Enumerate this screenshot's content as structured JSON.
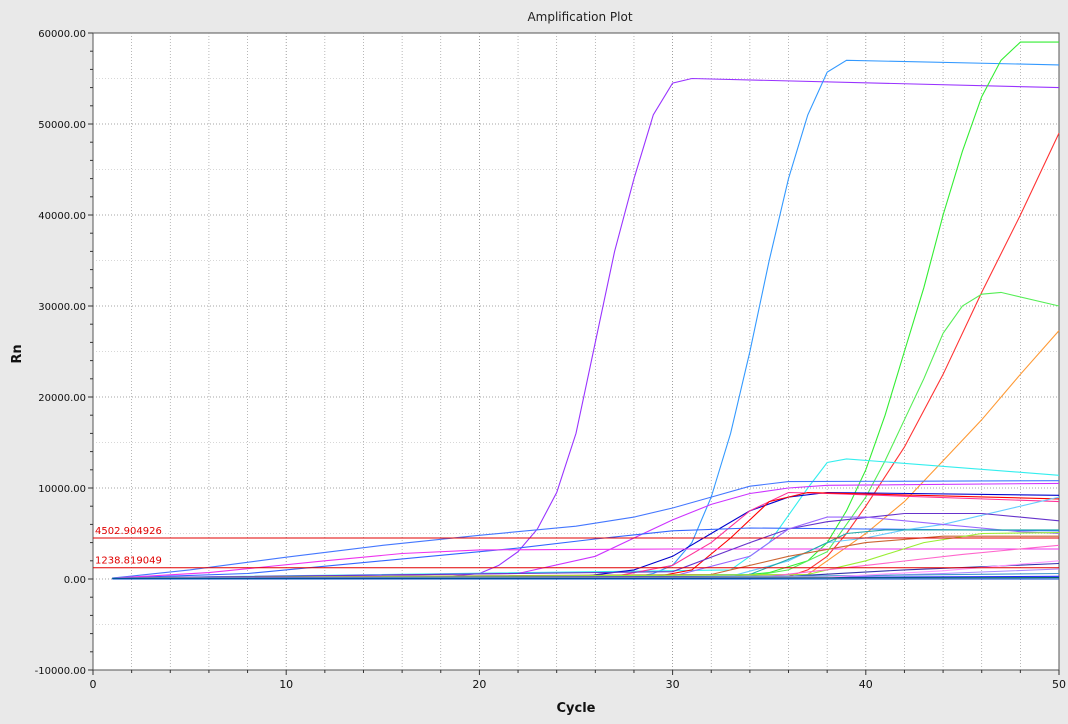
{
  "chart_data": {
    "type": "line",
    "title": "Amplification Plot",
    "xlabel": "Cycle",
    "ylabel": "Rn",
    "xlim": [
      0,
      50
    ],
    "ylim": [
      -10000,
      60000
    ],
    "x_ticks": [
      0,
      10,
      20,
      30,
      40,
      50
    ],
    "x_tick_labels": [
      "0",
      "10",
      "20",
      "30",
      "40",
      "50"
    ],
    "y_ticks": [
      -10000,
      0,
      10000,
      20000,
      30000,
      40000,
      50000,
      60000
    ],
    "y_tick_labels": [
      "-10000.00",
      "0.00",
      "10000.00",
      "20000.00",
      "30000.00",
      "40000.00",
      "50000.00",
      "60000.00"
    ],
    "grid": true,
    "background": "#ffffff",
    "thresholds": [
      {
        "label": "4502.904926",
        "value": 4502.904926,
        "color": "#e00000"
      },
      {
        "label": "1238.819049",
        "value": 1238.819049,
        "color": "#e00000"
      }
    ],
    "series": [
      {
        "color": "#9933ff",
        "points": [
          [
            1,
            100
          ],
          [
            18,
            200
          ],
          [
            20,
            600
          ],
          [
            21,
            1500
          ],
          [
            22,
            3000
          ],
          [
            23,
            5500
          ],
          [
            24,
            9500
          ],
          [
            25,
            16000
          ],
          [
            26,
            26000
          ],
          [
            27,
            36000
          ],
          [
            28,
            44000
          ],
          [
            29,
            51000
          ],
          [
            30,
            54500
          ],
          [
            31,
            55000
          ],
          [
            50,
            54000
          ]
        ]
      },
      {
        "color": "#3399ff",
        "points": [
          [
            1,
            100
          ],
          [
            28,
            200
          ],
          [
            29,
            600
          ],
          [
            30,
            1500
          ],
          [
            31,
            4000
          ],
          [
            32,
            9000
          ],
          [
            33,
            16000
          ],
          [
            34,
            25000
          ],
          [
            35,
            35000
          ],
          [
            36,
            44000
          ],
          [
            37,
            51000
          ],
          [
            38,
            55700
          ],
          [
            39,
            57000
          ],
          [
            50,
            56500
          ]
        ]
      },
      {
        "color": "#33ee33",
        "points": [
          [
            1,
            100
          ],
          [
            33,
            300
          ],
          [
            35,
            700
          ],
          [
            37,
            2000
          ],
          [
            38,
            4000
          ],
          [
            39,
            7500
          ],
          [
            40,
            12000
          ],
          [
            41,
            18000
          ],
          [
            42,
            25000
          ],
          [
            43,
            32000
          ],
          [
            44,
            40000
          ],
          [
            45,
            47000
          ],
          [
            46,
            53000
          ],
          [
            47,
            57000
          ],
          [
            48,
            59000
          ],
          [
            50,
            59000
          ]
        ]
      },
      {
        "color": "#ff3333",
        "points": [
          [
            1,
            100
          ],
          [
            36,
            300
          ],
          [
            37,
            1000
          ],
          [
            38,
            2500
          ],
          [
            39,
            5000
          ],
          [
            40,
            8000
          ],
          [
            42,
            14500
          ],
          [
            44,
            22500
          ],
          [
            46,
            31500
          ],
          [
            48,
            40000
          ],
          [
            50,
            49000
          ]
        ]
      },
      {
        "color": "#55ee55",
        "points": [
          [
            1,
            100
          ],
          [
            34,
            300
          ],
          [
            36,
            1000
          ],
          [
            38,
            3000
          ],
          [
            40,
            9000
          ],
          [
            41,
            13000
          ],
          [
            42,
            17500
          ],
          [
            43,
            22000
          ],
          [
            44,
            27000
          ],
          [
            45,
            30000
          ],
          [
            46,
            31300
          ],
          [
            47,
            31500
          ],
          [
            50,
            30000
          ]
        ]
      },
      {
        "color": "#ff9933",
        "points": [
          [
            1,
            100
          ],
          [
            37,
            500
          ],
          [
            38,
            2000
          ],
          [
            40,
            5000
          ],
          [
            42,
            8500
          ],
          [
            44,
            13000
          ],
          [
            46,
            17500
          ],
          [
            48,
            22500
          ],
          [
            50,
            27300
          ]
        ]
      },
      {
        "color": "#33eeee",
        "points": [
          [
            1,
            100
          ],
          [
            33,
            1000
          ],
          [
            35,
            4000
          ],
          [
            37,
            10000
          ],
          [
            38,
            12800
          ],
          [
            39,
            13200
          ],
          [
            50,
            11400
          ]
        ]
      },
      {
        "color": "#4477ff",
        "points": [
          [
            1,
            100
          ],
          [
            5,
            1000
          ],
          [
            10,
            2400
          ],
          [
            15,
            3700
          ],
          [
            20,
            4800
          ],
          [
            25,
            5800
          ],
          [
            28,
            6800
          ],
          [
            30,
            7800
          ],
          [
            32,
            9000
          ],
          [
            34,
            10200
          ],
          [
            36,
            10700
          ],
          [
            50,
            10800
          ]
        ]
      },
      {
        "color": "#cc33ff",
        "points": [
          [
            1,
            100
          ],
          [
            22,
            600
          ],
          [
            26,
            2500
          ],
          [
            28,
            4500
          ],
          [
            30,
            6500
          ],
          [
            32,
            8200
          ],
          [
            34,
            9400
          ],
          [
            36,
            10000
          ],
          [
            38,
            10300
          ],
          [
            50,
            10500
          ]
        ]
      },
      {
        "color": "#0000cc",
        "points": [
          [
            1,
            100
          ],
          [
            25,
            200
          ],
          [
            28,
            1000
          ],
          [
            30,
            2500
          ],
          [
            32,
            5000
          ],
          [
            34,
            7500
          ],
          [
            36,
            9000
          ],
          [
            38,
            9500
          ],
          [
            50,
            9200
          ]
        ]
      },
      {
        "color": "#ff3399",
        "points": [
          [
            1,
            100
          ],
          [
            27,
            300
          ],
          [
            30,
            1500
          ],
          [
            32,
            4000
          ],
          [
            34,
            7500
          ],
          [
            36,
            9500
          ],
          [
            38,
            9400
          ],
          [
            50,
            8500
          ]
        ]
      },
      {
        "color": "#ff0000",
        "points": [
          [
            1,
            100
          ],
          [
            29,
            200
          ],
          [
            31,
            1000
          ],
          [
            33,
            4500
          ],
          [
            35,
            8500
          ],
          [
            37,
            9500
          ],
          [
            50,
            8800
          ]
        ]
      },
      {
        "color": "#3366ff",
        "points": [
          [
            1,
            100
          ],
          [
            8,
            600
          ],
          [
            14,
            1800
          ],
          [
            18,
            2600
          ],
          [
            22,
            3400
          ],
          [
            26,
            4400
          ],
          [
            30,
            5300
          ],
          [
            34,
            5600
          ],
          [
            40,
            5500
          ],
          [
            50,
            5300
          ]
        ]
      },
      {
        "color": "#ee33ee",
        "points": [
          [
            1,
            100
          ],
          [
            6,
            700
          ],
          [
            12,
            2000
          ],
          [
            16,
            2800
          ],
          [
            20,
            3200
          ],
          [
            30,
            3300
          ],
          [
            50,
            3300
          ]
        ]
      },
      {
        "color": "#66ccff",
        "points": [
          [
            1,
            100
          ],
          [
            33,
            300
          ],
          [
            36,
            2000
          ],
          [
            38,
            4000
          ],
          [
            40,
            4500
          ],
          [
            42,
            5400
          ],
          [
            44,
            6000
          ],
          [
            46,
            7000
          ],
          [
            48,
            8000
          ],
          [
            50,
            9000
          ]
        ]
      },
      {
        "color": "#6633cc",
        "points": [
          [
            1,
            100
          ],
          [
            30,
            800
          ],
          [
            34,
            4000
          ],
          [
            36,
            5500
          ],
          [
            38,
            6300
          ],
          [
            42,
            7200
          ],
          [
            46,
            7200
          ],
          [
            50,
            6400
          ]
        ]
      },
      {
        "color": "#9966ff",
        "points": [
          [
            1,
            100
          ],
          [
            30,
            300
          ],
          [
            34,
            2500
          ],
          [
            36,
            5500
          ],
          [
            38,
            6800
          ],
          [
            40,
            6800
          ],
          [
            44,
            6000
          ],
          [
            48,
            5200
          ],
          [
            50,
            5000
          ]
        ]
      },
      {
        "color": "#22aaaa",
        "points": [
          [
            1,
            100
          ],
          [
            34,
            500
          ],
          [
            37,
            3000
          ],
          [
            39,
            5000
          ],
          [
            41,
            5400
          ],
          [
            50,
            5400
          ]
        ]
      },
      {
        "color": "#cc6633",
        "points": [
          [
            1,
            100
          ],
          [
            32,
            500
          ],
          [
            36,
            2500
          ],
          [
            40,
            4000
          ],
          [
            44,
            4700
          ],
          [
            50,
            4700
          ]
        ]
      },
      {
        "color": "#99ee33",
        "points": [
          [
            1,
            100
          ],
          [
            37,
            500
          ],
          [
            40,
            2000
          ],
          [
            43,
            4000
          ],
          [
            46,
            5000
          ],
          [
            50,
            5100
          ]
        ]
      },
      {
        "color": "#ff66cc",
        "points": [
          [
            1,
            100
          ],
          [
            35,
            300
          ],
          [
            40,
            1500
          ],
          [
            45,
            2700
          ],
          [
            50,
            3700
          ]
        ]
      },
      {
        "color": "#3333aa",
        "points": [
          [
            1,
            100
          ],
          [
            36,
            300
          ],
          [
            42,
            1000
          ],
          [
            50,
            1700
          ]
        ]
      },
      {
        "color": "#aa88ff",
        "points": [
          [
            1,
            100
          ],
          [
            38,
            200
          ],
          [
            44,
            600
          ],
          [
            50,
            1100
          ]
        ]
      },
      {
        "color": "#4499cc",
        "points": [
          [
            1,
            100
          ],
          [
            30,
            200
          ],
          [
            40,
            400
          ],
          [
            50,
            600
          ]
        ]
      },
      {
        "color": "#2222ff",
        "points": [
          [
            1,
            50
          ],
          [
            30,
            100
          ],
          [
            40,
            200
          ],
          [
            50,
            300
          ]
        ]
      },
      {
        "color": "#ff99ff",
        "points": [
          [
            1,
            50
          ],
          [
            38,
            200
          ],
          [
            44,
            900
          ],
          [
            50,
            2000
          ]
        ]
      },
      {
        "color": "#006666",
        "points": [
          [
            1,
            50
          ],
          [
            50,
            150
          ]
        ]
      },
      {
        "color": "#0044cc",
        "points": [
          [
            1,
            0
          ],
          [
            50,
            0
          ]
        ]
      }
    ]
  }
}
